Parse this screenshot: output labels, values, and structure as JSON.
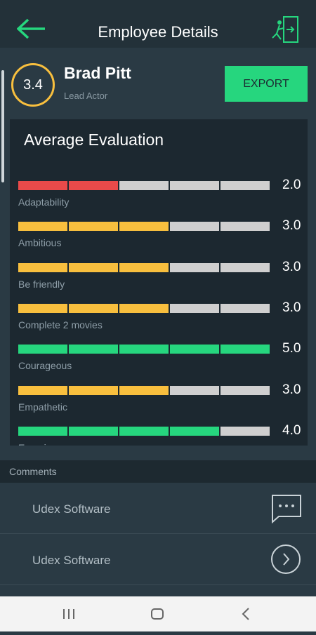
{
  "header": {
    "title": "Employee Details"
  },
  "profile": {
    "rating": "3.4",
    "name": "Brad Pitt",
    "role": "Lead Actor",
    "export_button": "EXPORT"
  },
  "evaluation": {
    "title": "Average Evaluation",
    "max": 5,
    "criteria": [
      {
        "name": "Adaptability",
        "value": 2,
        "label": "2.0",
        "color": "#e94a4a"
      },
      {
        "name": "Ambitious",
        "value": 3,
        "label": "3.0",
        "color": "#f8bf3e"
      },
      {
        "name": "Be friendly",
        "value": 3,
        "label": "3.0",
        "color": "#f8bf3e"
      },
      {
        "name": "Complete 2 movies",
        "value": 3,
        "label": "3.0",
        "color": "#f8bf3e"
      },
      {
        "name": "Courageous",
        "value": 5,
        "label": "5.0",
        "color": "#26d67e"
      },
      {
        "name": "Empathetic",
        "value": 3,
        "label": "3.0",
        "color": "#f8bf3e"
      },
      {
        "name": "Experience",
        "value": 4,
        "label": "4.0",
        "color": "#26d67e"
      }
    ]
  },
  "comments": {
    "title": "Comments",
    "items": [
      "Udex Software",
      "Udex Software"
    ]
  }
}
